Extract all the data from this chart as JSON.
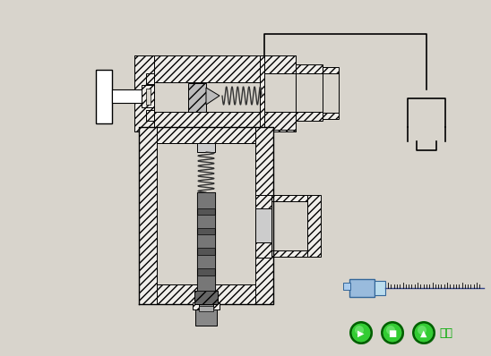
{
  "bg_color": "#d8d4cc",
  "fig_width": 5.48,
  "fig_height": 3.98,
  "dpi": 100,
  "black": "#000000",
  "white": "#ffffff",
  "hatch_face": "#f0eeea",
  "gray_dark": "#444444",
  "gray_mid": "#888888",
  "gray_light": "#cccccc",
  "blue_btn": "#aaccee",
  "green_btn": "#33cc33",
  "green_dark": "#008800",
  "green_text": "#00aa00",
  "return_text": "返回",
  "btn_labels": [
    "▶",
    "■",
    "▲"
  ]
}
